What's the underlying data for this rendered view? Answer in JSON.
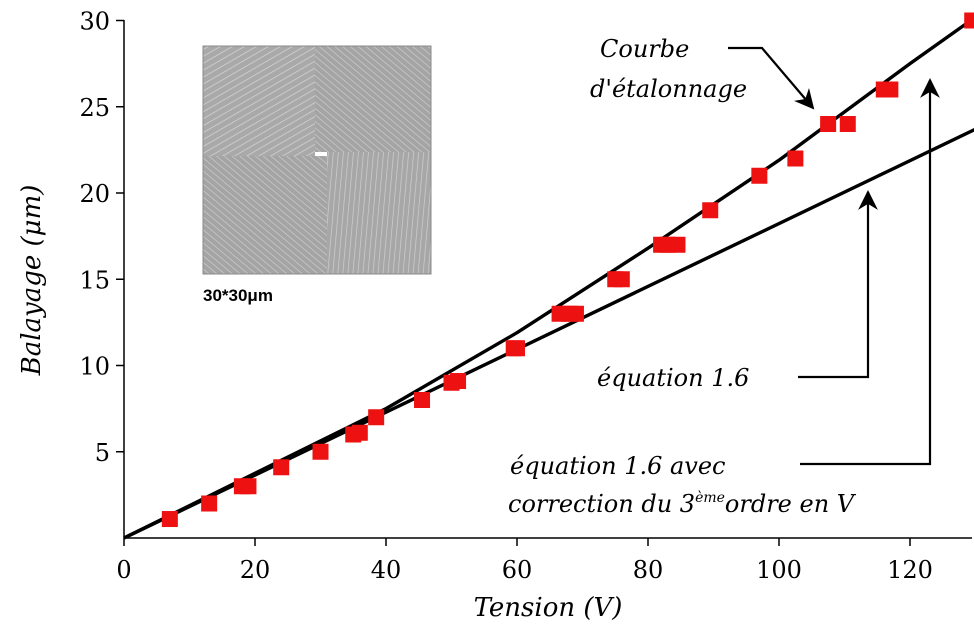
{
  "chart_data": {
    "type": "scatter",
    "xlabel": "Tension (V)",
    "ylabel": "Balayage (μm)",
    "xlim": [
      0,
      130
    ],
    "ylim": [
      0,
      30
    ],
    "x_ticks": [
      0,
      20,
      40,
      60,
      80,
      100,
      120
    ],
    "y_ticks": [
      5,
      10,
      15,
      20,
      25,
      30
    ],
    "grid": false,
    "series": [
      {
        "kind": "scatter",
        "color": "#ee1111",
        "marker": "square",
        "points": [
          [
            7,
            1.1
          ],
          [
            13,
            2
          ],
          [
            18,
            3
          ],
          [
            19,
            3
          ],
          [
            24,
            4.1
          ],
          [
            30,
            5
          ],
          [
            35,
            6
          ],
          [
            36,
            6.1
          ],
          [
            38.5,
            7
          ],
          [
            45.5,
            8
          ],
          [
            50,
            9
          ],
          [
            51,
            9.1
          ],
          [
            59.5,
            11
          ],
          [
            60,
            11
          ],
          [
            66.5,
            13
          ],
          [
            68,
            13
          ],
          [
            69,
            13
          ],
          [
            75,
            15
          ],
          [
            76,
            15
          ],
          [
            82,
            17
          ],
          [
            83,
            17
          ],
          [
            84.5,
            17
          ],
          [
            89.5,
            19
          ],
          [
            97,
            21
          ],
          [
            102.5,
            22
          ],
          [
            107.5,
            24
          ],
          [
            110.5,
            24
          ],
          [
            116,
            26
          ],
          [
            117,
            26
          ],
          [
            129.5,
            30
          ]
        ]
      },
      {
        "kind": "line",
        "color": "#000000",
        "description_key": "calibration",
        "points": [
          [
            0,
            0
          ],
          [
            40,
            7.5
          ],
          [
            60,
            11.9
          ],
          [
            80,
            16.8
          ],
          [
            100,
            21.9
          ],
          [
            120,
            27.5
          ],
          [
            130,
            30.2
          ]
        ]
      },
      {
        "kind": "line",
        "color": "#000000",
        "description_key": "equation",
        "points": [
          [
            0,
            0
          ],
          [
            130,
            23.7
          ]
        ]
      }
    ],
    "annotations": {
      "calibration_line1": "Courbe",
      "calibration_line2": "d'étalonnage",
      "equation": "équation 1.6",
      "correction_line1": "équation 1.6 avec",
      "correction_prefix": "correction du 3",
      "correction_sup": "ème",
      "correction_suffix": "ordre en V"
    },
    "inset": {
      "caption": "30*30μm"
    }
  }
}
